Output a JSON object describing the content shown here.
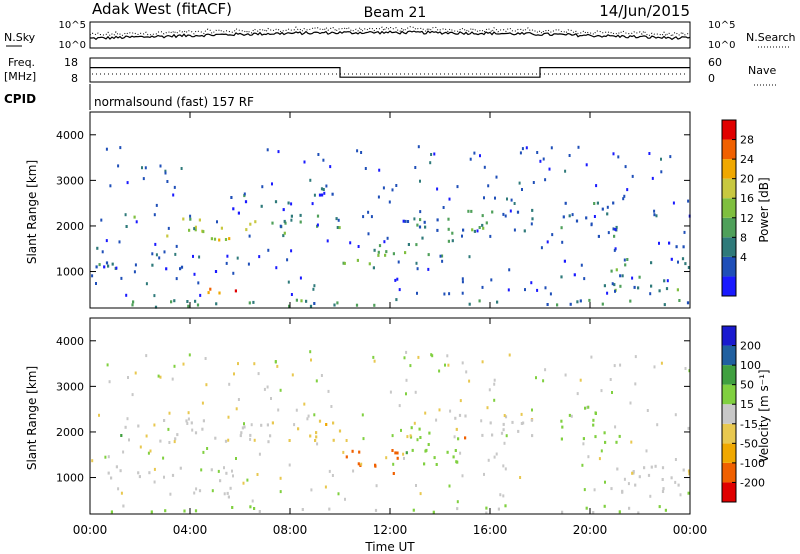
{
  "header": {
    "station": "Adak West (fitACF)",
    "beam": "Beam 21",
    "date": "14/Jun/2015"
  },
  "noise_panel": {
    "left_label": "N.Sky",
    "right_label": "N.Search",
    "left_ticks": [
      "10^5",
      "10^0"
    ],
    "right_ticks": [
      "10^5",
      "10^0"
    ]
  },
  "freq_panel": {
    "left_label_1": "Freq.",
    "left_label_2": "[MHz]",
    "right_label": "Nave",
    "left_ticks": [
      "18",
      "8"
    ],
    "right_ticks": [
      "60",
      "0"
    ],
    "freq_steps": [
      {
        "start_hour": 0,
        "end_hour": 10,
        "value": 14
      },
      {
        "start_hour": 10,
        "end_hour": 18,
        "value": 10
      },
      {
        "start_hour": 18,
        "end_hour": 24,
        "value": 14
      }
    ],
    "nave_level": 14
  },
  "cpid": {
    "label": "CPID",
    "text": "normalsound (fast) 157 RF"
  },
  "time_axis": {
    "ticks": [
      "00:00",
      "04:00",
      "08:00",
      "12:00",
      "16:00",
      "20:00",
      "00:00"
    ],
    "label": "Time UT"
  },
  "chart_data": [
    {
      "type": "heatmap",
      "name": "power-panel",
      "ylabel": "Slant Range [km]",
      "xlim": [
        0,
        24
      ],
      "ylim": [
        200,
        4500
      ],
      "yticks": [
        "4000",
        "3000",
        "2000",
        "1000"
      ],
      "colorbar": {
        "label": "Power [dB]",
        "ticks": [
          "28",
          "24",
          "20",
          "16",
          "12",
          "8",
          "4"
        ],
        "colors": [
          "#1a1aff",
          "#1f4fb8",
          "#2f7a7a",
          "#4fa05a",
          "#7fbf3f",
          "#c8c840",
          "#f0a800",
          "#f06000",
          "#e00000"
        ]
      },
      "blobs": [
        {
          "t0": 0.0,
          "t1": 0.7,
          "r0": 1500,
          "r1": 1650,
          "v": 6
        },
        {
          "t0": 0.0,
          "t1": 2.5,
          "r0": 950,
          "r1": 1300,
          "v": 8
        },
        {
          "t0": 1.1,
          "t1": 2.1,
          "r0": 1900,
          "r1": 2250,
          "v": 12
        },
        {
          "t0": 2.6,
          "t1": 4.6,
          "r0": 1800,
          "r1": 2300,
          "v": 16
        },
        {
          "t0": 3.0,
          "t1": 5.5,
          "r0": 950,
          "r1": 1250,
          "v": 6
        },
        {
          "t0": 4.2,
          "t1": 6.0,
          "r0": 550,
          "r1": 900,
          "v": 27
        },
        {
          "t0": 4.8,
          "t1": 7.2,
          "r0": 1700,
          "r1": 2200,
          "v": 18
        },
        {
          "t0": 7.2,
          "t1": 10.0,
          "r0": 1800,
          "r1": 2300,
          "v": 12
        },
        {
          "t0": 5.5,
          "t1": 8.0,
          "r0": 2300,
          "r1": 2700,
          "v": 6
        },
        {
          "t0": 8.5,
          "t1": 9.8,
          "r0": 2600,
          "r1": 3000,
          "v": 5
        },
        {
          "t0": 10.0,
          "t1": 12.8,
          "r0": 1100,
          "r1": 1650,
          "v": 14
        },
        {
          "t0": 12.5,
          "t1": 14.8,
          "r0": 1300,
          "r1": 2200,
          "v": 8
        },
        {
          "t0": 14.0,
          "t1": 17.8,
          "r0": 1900,
          "r1": 2400,
          "v": 10
        },
        {
          "t0": 18.8,
          "t1": 21.2,
          "r0": 1800,
          "r1": 2600,
          "v": 8
        },
        {
          "t0": 18.8,
          "t1": 19.5,
          "r0": 900,
          "r1": 1300,
          "v": 5
        },
        {
          "t0": 20.5,
          "t1": 24.0,
          "r0": 600,
          "r1": 1300,
          "v": 10
        },
        {
          "t0": 22.5,
          "t1": 24.0,
          "r0": 1300,
          "r1": 1700,
          "v": 6
        },
        {
          "t0": 0.0,
          "t1": 24.0,
          "r0": 250,
          "r1": 420,
          "v": 10
        }
      ]
    },
    {
      "type": "heatmap",
      "name": "velocity-panel",
      "ylabel": "Slant Range [km]",
      "xlim": [
        0,
        24
      ],
      "ylim": [
        200,
        4500
      ],
      "yticks": [
        "4000",
        "3000",
        "2000",
        "1000"
      ],
      "colorbar": {
        "label": "Velocity [m s⁻¹]",
        "ticks": [
          "200",
          "100",
          "50",
          "15",
          "-15",
          "-50",
          "-100",
          "-200"
        ],
        "colors": [
          "#e00000",
          "#f06000",
          "#f0a800",
          "#e8c850",
          "#c8c8c8",
          "#80d040",
          "#40a040",
          "#2060a0",
          "#1a1acf"
        ]
      },
      "blobs": [
        {
          "t0": 0.0,
          "t1": 2.5,
          "r0": 950,
          "r1": 1300,
          "v": 0
        },
        {
          "t0": 1.1,
          "t1": 2.1,
          "r0": 1900,
          "r1": 2250,
          "v": 0
        },
        {
          "t0": 2.6,
          "t1": 4.6,
          "r0": 1800,
          "r1": 2300,
          "v": 0
        },
        {
          "t0": 3.0,
          "t1": 5.5,
          "r0": 950,
          "r1": 1250,
          "v": 0
        },
        {
          "t0": 4.2,
          "t1": 6.0,
          "r0": 550,
          "r1": 900,
          "v": 0
        },
        {
          "t0": 4.8,
          "t1": 7.2,
          "r0": 1700,
          "r1": 2200,
          "v": 0
        },
        {
          "t0": 7.2,
          "t1": 10.0,
          "r0": 1800,
          "r1": 2300,
          "v": -40
        },
        {
          "t0": 10.0,
          "t1": 12.8,
          "r0": 1100,
          "r1": 1650,
          "v": -180
        },
        {
          "t0": 12.5,
          "t1": 14.8,
          "r0": 1300,
          "r1": 2200,
          "v": 40
        },
        {
          "t0": 14.0,
          "t1": 17.8,
          "r0": 1900,
          "r1": 2400,
          "v": 0
        },
        {
          "t0": 18.8,
          "t1": 21.2,
          "r0": 1800,
          "r1": 2600,
          "v": 30
        },
        {
          "t0": 20.5,
          "t1": 24.0,
          "r0": 600,
          "r1": 1300,
          "v": 0
        },
        {
          "t0": 0.0,
          "t1": 24.0,
          "r0": 250,
          "r1": 420,
          "v": 20
        }
      ]
    }
  ]
}
